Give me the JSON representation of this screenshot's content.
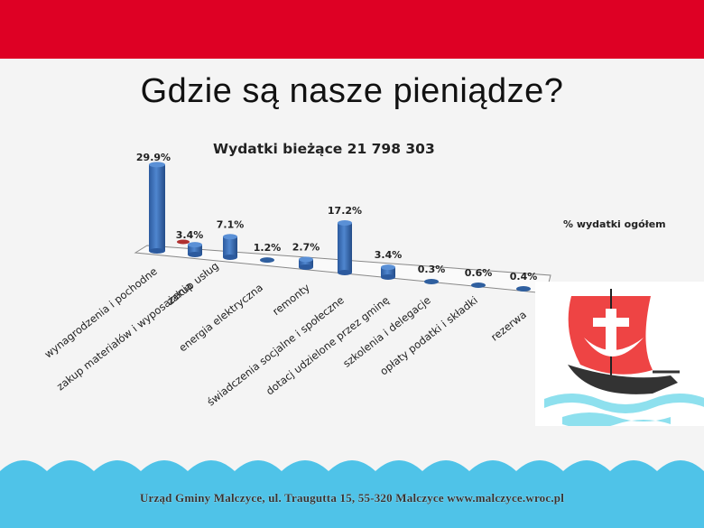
{
  "slide": {
    "title": "Gdzie są nasze pieniądze?",
    "footer": "Urząd Gminy Malczyce, ul.  Traugutta 15,  55-320 Malczyce  www.malczyce.wroc.pl",
    "colors": {
      "top_band": "#de0024",
      "wave": "#4fc3e8",
      "bar": "#3a6fb8",
      "bar_highlight": "#c0392b"
    }
  },
  "chart_data": {
    "type": "bar",
    "title": "Wydatki bieżące 21 798 303",
    "legend": "% wydatki ogółem",
    "xlabel": "",
    "ylabel": "",
    "categories": [
      "wynagrodzenia i pochodne",
      "zakup materiałów i wyposażenia",
      "zakup usług",
      "energia elektryczna",
      "remonty",
      "świadczenia socjalne i społeczne",
      "dotacj udzielone przez gminę",
      "szkolenia i delegacje",
      "opłaty podatki i składki",
      "rezerwa"
    ],
    "series": [
      {
        "name": "% wydatki ogółem",
        "values": [
          29.9,
          3.4,
          7.1,
          1.2,
          2.7,
          17.2,
          3.4,
          0.3,
          0.6,
          0.4
        ]
      }
    ],
    "value_labels": [
      "29.9%",
      "3.4%",
      "7.1%",
      "1.2%",
      "2.7%",
      "17.2%",
      "3.4%",
      "0.3%",
      "0.6%",
      "0.4%"
    ],
    "grid": false,
    "style": "3d-cylinder"
  }
}
